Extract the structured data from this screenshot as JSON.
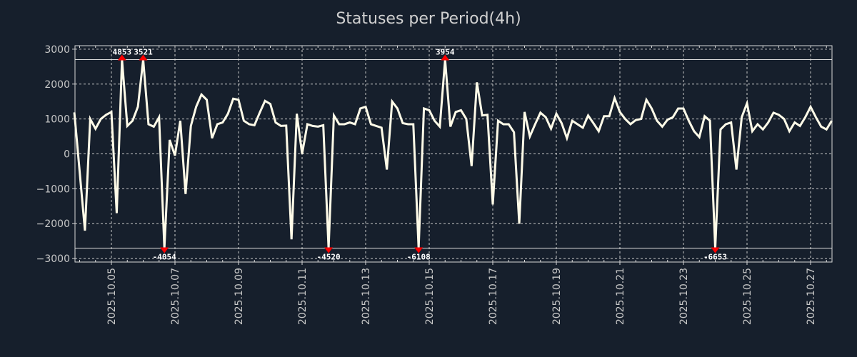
{
  "chart_data": {
    "type": "line",
    "title": "Statuses per Period(4h)",
    "xlabel": "",
    "ylabel": "",
    "x_start": "2025-10-03 20:00",
    "x_step_hours": 4,
    "x_tick_labels": [
      "2025.10.05",
      "2025.10.07",
      "2025.10.09",
      "2025.10.11",
      "2025.10.13",
      "2025.10.15",
      "2025.10.17",
      "2025.10.19",
      "2025.10.21",
      "2025.10.23",
      "2025.10.25",
      "2025.10.27"
    ],
    "x_tick_days": [
      5,
      7,
      9,
      11,
      13,
      15,
      17,
      19,
      21,
      23,
      25,
      27
    ],
    "y_ticks": [
      3000,
      2000,
      1000,
      0,
      -1000,
      -2000,
      -3000
    ],
    "ylim": [
      -3100,
      3100
    ],
    "clip_range": [
      -2700,
      2700
    ],
    "grid": true,
    "line_color": "#fffbe8",
    "marker_color": "#ff0000",
    "annotations": [
      {
        "index": 9,
        "value": 4853,
        "label": "4853"
      },
      {
        "index": 13,
        "value": 3521,
        "label": "3521"
      },
      {
        "index": 17,
        "value": -4054,
        "label": "-4054"
      },
      {
        "index": 48,
        "value": -4520,
        "label": "-4520"
      },
      {
        "index": 65,
        "value": -6108,
        "label": "-6108"
      },
      {
        "index": 70,
        "value": 3954,
        "label": "3954"
      },
      {
        "index": 121,
        "value": -6653,
        "label": "-6653"
      }
    ],
    "values": [
      1190,
      -500,
      -2200,
      1000,
      720,
      1000,
      1120,
      1200,
      -1700,
      4853,
      800,
      950,
      1350,
      3521,
      850,
      780,
      1050,
      -4054,
      400,
      -50,
      950,
      -1150,
      800,
      1350,
      1700,
      1550,
      450,
      850,
      900,
      1150,
      1580,
      1550,
      950,
      850,
      820,
      1180,
      1520,
      1430,
      900,
      800,
      810,
      -2450,
      1150,
      0,
      850,
      800,
      780,
      820,
      -4520,
      1100,
      850,
      850,
      900,
      850,
      1300,
      1350,
      850,
      800,
      750,
      -450,
      1500,
      1300,
      880,
      850,
      850,
      -6108,
      1300,
      1250,
      950,
      780,
      3954,
      780,
      1200,
      1250,
      1000,
      -350,
      2050,
      1100,
      1120,
      -1450,
      950,
      850,
      850,
      620,
      -2000,
      1200,
      500,
      850,
      1180,
      1050,
      720,
      1150,
      880,
      450,
      950,
      850,
      750,
      1100,
      880,
      650,
      1080,
      1080,
      1600,
      1200,
      1000,
      850,
      970,
      1000,
      1550,
      1300,
      950,
      780,
      980,
      1050,
      1300,
      1300,
      950,
      650,
      480,
      1080,
      950,
      -6653,
      700,
      850,
      900,
      -450,
      1050,
      1450,
      650,
      850,
      700,
      900,
      1180,
      1120,
      1000,
      650,
      900,
      800,
      1050,
      1350,
      1050,
      780,
      700,
      950
    ]
  }
}
